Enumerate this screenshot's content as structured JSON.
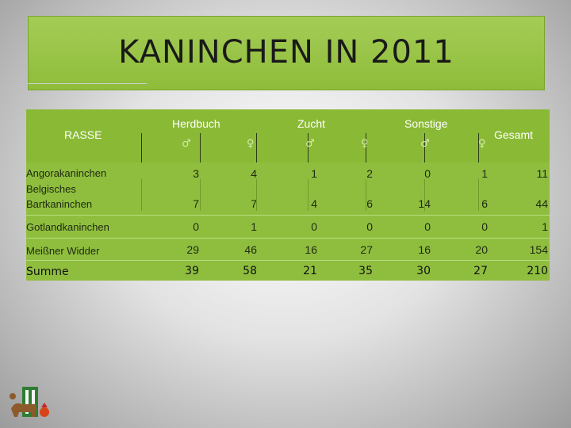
{
  "title": "KANINCHEN IN 2011",
  "table": {
    "headers": {
      "rasse": "RASSE",
      "herdbuch": "Herdbuch",
      "zucht": "Zucht",
      "sonstige": "Sonstige",
      "gesamt": "Gesamt",
      "male_symbol": "♂",
      "female_symbol": "♀"
    },
    "rows": [
      {
        "label": "Angorakaninchen",
        "values": [
          "3",
          "4",
          "1",
          "2",
          "0",
          "1",
          "11"
        ]
      },
      {
        "label": "Belgisches Bartkaninchen",
        "values": [
          "7",
          "7",
          "4",
          "6",
          "14",
          "6",
          "44"
        ]
      },
      {
        "label": "Gotlandkaninchen",
        "values": [
          "0",
          "1",
          "0",
          "0",
          "0",
          "0",
          "1"
        ]
      },
      {
        "label": "Meißner Widder",
        "values": [
          "29",
          "46",
          "16",
          "27",
          "16",
          "20",
          "154"
        ]
      },
      {
        "label": "Summe",
        "values": [
          "39",
          "58",
          "21",
          "35",
          "30",
          "27",
          "210"
        ]
      }
    ]
  },
  "colors": {
    "accent_green": "#8fbe3f",
    "title_green": "#9cc64c"
  },
  "logo": {
    "icon": "farm-animals-logo"
  }
}
